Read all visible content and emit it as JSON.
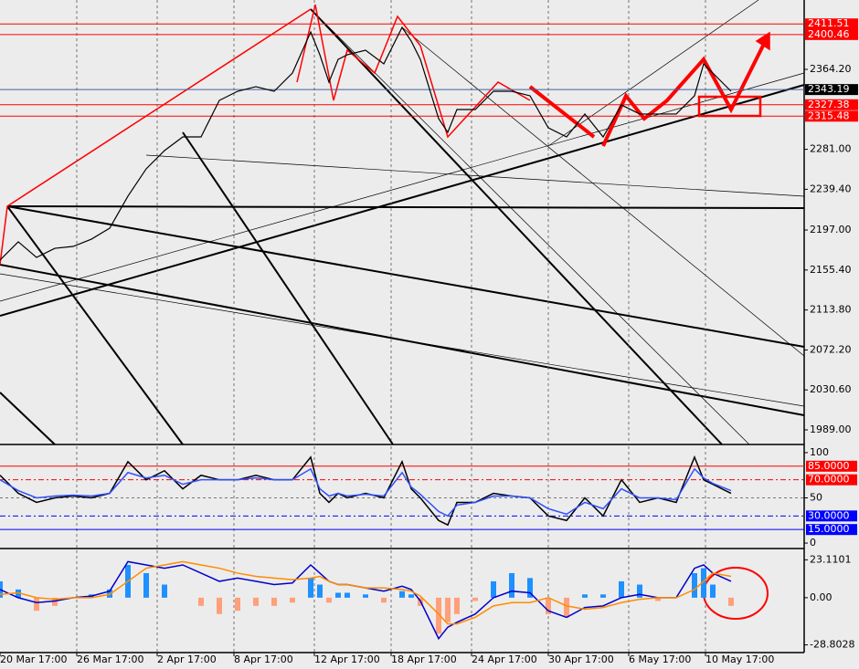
{
  "chart_data": [
    {
      "type": "line",
      "x": [
        0,
        5,
        10,
        15,
        20,
        25,
        30,
        35,
        40,
        45,
        50,
        55,
        60,
        65,
        70,
        75,
        80,
        85,
        87.5,
        90,
        92.5,
        95,
        100,
        105,
        110,
        112.5,
        115,
        120,
        122.5,
        125,
        130,
        135,
        140,
        145,
        150,
        155,
        160,
        165,
        170,
        175,
        180,
        185,
        190,
        192.5,
        195,
        200
      ],
      "series": [
        {
          "color": "#000000",
          "values": [
            2165.7,
            2184.7,
            2168.5,
            2178.0,
            2179.9,
            2187.5,
            2198.9,
            2232.2,
            2260.7,
            2279.7,
            2293.9,
            2293.9,
            2331.9,
            2341.4,
            2346.2,
            2341.4,
            2360.4,
            2403.1,
            2379.4,
            2350.9,
            2374.6,
            2379.4,
            2384.1,
            2369.9,
            2407.9,
            2393.6,
            2374.6,
            2312.9,
            2298.7,
            2322.4,
            2322.4,
            2341.4,
            2341.4,
            2336.7,
            2303.4,
            2293.9,
            2317.7,
            2293.9,
            2327.2,
            2317.7,
            2317.7,
            2317.7,
            2336.7,
            2369.9,
            2360.4,
            2341.4
          ]
        }
      ],
      "xlim": [
        0,
        220
      ],
      "ylim": [
        1973.8,
        2436.4
      ],
      "yticks": [
        {
          "value": 2364.2,
          "label": "2364.20"
        },
        {
          "value": 2281,
          "label": "2281.00"
        },
        {
          "value": 2239.4,
          "label": "2239.40"
        },
        {
          "value": 2197,
          "label": "2197.00"
        },
        {
          "value": 2155.4,
          "label": "2155.40"
        },
        {
          "value": 2113.8,
          "label": "2113.80"
        },
        {
          "value": 2072.2,
          "label": "2072.20"
        },
        {
          "value": 2030.6,
          "label": "2030.60"
        },
        {
          "value": 1989,
          "label": "1989.00"
        }
      ],
      "hlines": [
        {
          "value": 2411.51,
          "color": "#ff0000"
        },
        {
          "value": 2400.46,
          "color": "#ff0000"
        },
        {
          "value": 2343.19,
          "color": "#000000"
        },
        {
          "value": 2327.38,
          "color": "#ff0000"
        },
        {
          "value": 2315.48,
          "color": "#ff0000"
        }
      ]
    },
    {
      "type": "line",
      "x": [
        0,
        5,
        10,
        15,
        20,
        25,
        30,
        35,
        40,
        45,
        50,
        55,
        60,
        65,
        70,
        75,
        80,
        85,
        87.5,
        90,
        92.5,
        95,
        100,
        105,
        110,
        112.5,
        115,
        120,
        122.5,
        125,
        130,
        135,
        140,
        145,
        150,
        155,
        160,
        165,
        170,
        175,
        180,
        185,
        190,
        192.5,
        195,
        200
      ],
      "series": [
        {
          "color": "#000000",
          "values": [
            75,
            55,
            45,
            50,
            52,
            50,
            55,
            90,
            70,
            80,
            60,
            75,
            70,
            70,
            75,
            70,
            70,
            95,
            55,
            45,
            55,
            50,
            55,
            50,
            90,
            60,
            50,
            25,
            20,
            45,
            45,
            55,
            52,
            50,
            30,
            25,
            50,
            30,
            70,
            45,
            50,
            45,
            95,
            70,
            65,
            55
          ]
        },
        {
          "color": "#3050ff",
          "values": [
            70,
            58,
            50,
            52,
            53,
            52,
            55,
            78,
            72,
            75,
            65,
            70,
            70,
            70,
            72,
            70,
            70,
            82,
            60,
            52,
            55,
            52,
            54,
            52,
            78,
            62,
            54,
            35,
            30,
            42,
            45,
            52,
            52,
            50,
            38,
            32,
            45,
            38,
            60,
            50,
            50,
            48,
            82,
            72,
            66,
            58
          ]
        }
      ],
      "xlim": [
        0,
        220
      ],
      "ylim": [
        -6,
        107
      ],
      "yticks": [
        100,
        {
          "value": 85,
          "label": "85.0000",
          "color": "#ff0000"
        },
        {
          "value": 70,
          "label": "70.0000",
          "color": "#ff0000"
        },
        50,
        {
          "value": 30,
          "label": "30.0000",
          "color": "#0000ff"
        },
        {
          "value": 15,
          "label": "15.0000",
          "color": "#0000ff"
        },
        0
      ]
    },
    {
      "type": "bar",
      "x": [
        0,
        5,
        10,
        15,
        20,
        25,
        30,
        35,
        40,
        45,
        50,
        55,
        60,
        65,
        70,
        75,
        80,
        85,
        87.5,
        90,
        92.5,
        95,
        100,
        105,
        110,
        112.5,
        115,
        120,
        122.5,
        125,
        130,
        135,
        140,
        145,
        150,
        155,
        160,
        165,
        170,
        175,
        180,
        185,
        190,
        192.5,
        195,
        200
      ],
      "values": [
        10,
        5,
        -8,
        -5,
        0,
        2,
        5,
        20,
        15,
        8,
        0,
        -5,
        -10,
        -8,
        -5,
        -5,
        -3,
        12,
        8,
        -3,
        3,
        3,
        2,
        -3,
        4,
        2,
        -5,
        -22,
        -15,
        -10,
        -2,
        10,
        15,
        12,
        -10,
        -12,
        2,
        2,
        10,
        8,
        -2,
        0,
        15,
        18,
        8,
        -5
      ],
      "color_up": "#1e90ff",
      "color_down": "#ffa07a",
      "series": [
        {
          "color": "#0000cc",
          "values": [
            5,
            0,
            -3,
            -2,
            0,
            1,
            4,
            22,
            20,
            18,
            20,
            15,
            10,
            12,
            10,
            8,
            9,
            20,
            15,
            10,
            8,
            8,
            6,
            4,
            7,
            5,
            -2,
            -25,
            -18,
            -15,
            -10,
            0,
            4,
            3,
            -8,
            -12,
            -6,
            -5,
            0,
            2,
            0,
            0,
            18,
            20,
            15,
            10
          ]
        },
        {
          "color": "#ff8c00",
          "values": [
            2,
            3,
            0,
            -1,
            0,
            0,
            2,
            10,
            18,
            20,
            22,
            20,
            18,
            15,
            13,
            12,
            11,
            12,
            13,
            10,
            8,
            8,
            6,
            6,
            5,
            4,
            1,
            -10,
            -16,
            -16,
            -12,
            -5,
            -3,
            -3,
            0,
            -5,
            -7,
            -6,
            -3,
            -1,
            0,
            0,
            5,
            10,
            15,
            13
          ]
        }
      ],
      "xlim": [
        0,
        220
      ],
      "ylim": [
        -33.5,
        28.9
      ],
      "yticks": [
        23.1101,
        {
          "value": 0,
          "label": "0.00"
        },
        -28.8028
      ],
      "xticks": [
        {
          "value": 0,
          "label": "20 Mar 17:00"
        },
        {
          "value": 21,
          "label": "26 Mar 17:00"
        },
        {
          "value": 43,
          "label": "2 Apr 17:00"
        },
        {
          "value": 64,
          "label": "8 Apr 17:00"
        },
        {
          "value": 86,
          "label": "12 Apr 17:00"
        },
        {
          "value": 107,
          "label": "18 Apr 17:00"
        },
        {
          "value": 129,
          "label": "24 Apr 17:00"
        },
        {
          "value": 150,
          "label": "30 Apr 17:00"
        },
        {
          "value": 172,
          "label": "6 May 17:00"
        },
        {
          "value": 193,
          "label": "10 May 17:00"
        }
      ]
    }
  ]
}
